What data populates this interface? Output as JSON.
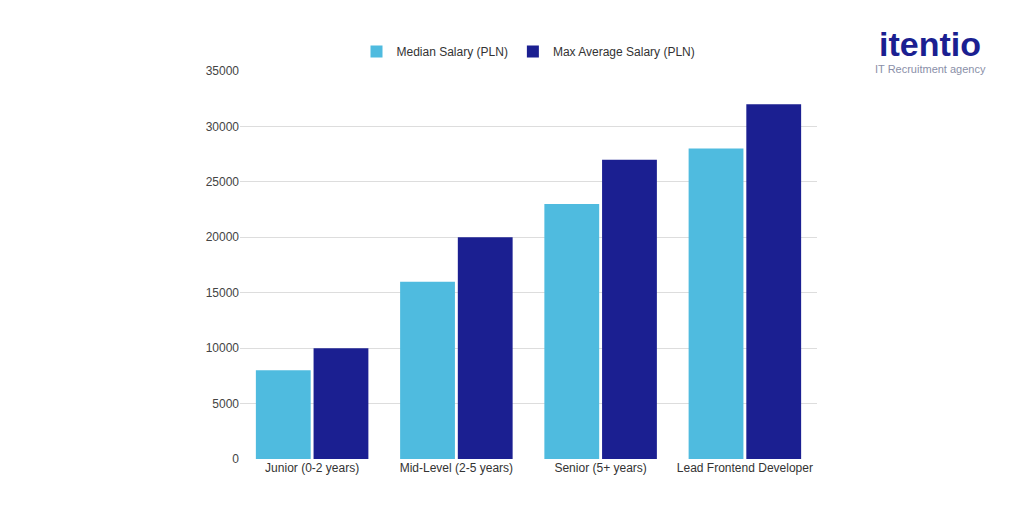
{
  "chart_data": {
    "type": "bar",
    "categories": [
      "Junior (0-2 years)",
      "Mid-Level (2-5 years)",
      "Senior (5+ years)",
      "Lead Frontend Developer"
    ],
    "series": [
      {
        "name": "Median Salary (PLN)",
        "color": "#4fbbdf",
        "values": [
          8000,
          16000,
          23000,
          28000
        ]
      },
      {
        "name": "Max Average Salary (PLN)",
        "color": "#1b1f91",
        "values": [
          10000,
          20000,
          27000,
          32000
        ]
      }
    ],
    "ylim": [
      0,
      35000
    ],
    "yticks": [
      0,
      5000,
      10000,
      15000,
      20000,
      25000,
      30000,
      35000
    ],
    "grid": true,
    "legend": "top",
    "annotations": [
      "itentio",
      "IT Recruitment agency"
    ]
  }
}
